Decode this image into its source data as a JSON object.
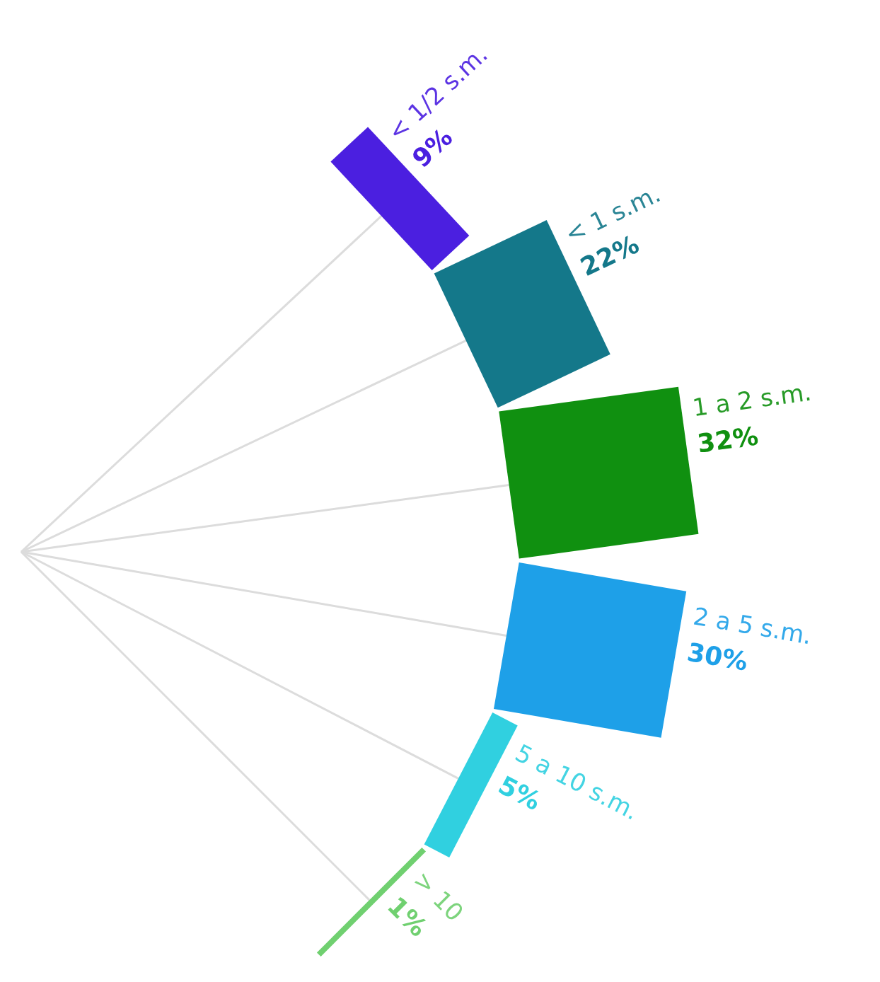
{
  "chart_data": {
    "type": "other",
    "categories": [
      "< 1/2 s.m.",
      "< 1 s.m.",
      "1 a 2 s.m.",
      "2 a 5 s.m.",
      "5 a 10 s.m.",
      "> 10"
    ],
    "values": [
      9,
      22,
      32,
      30,
      5,
      1
    ],
    "value_labels": [
      "9%",
      "22%",
      "32%",
      "30%",
      "5%",
      "1%"
    ],
    "colors": [
      "#4b1fe0",
      "#14788a",
      "#109010",
      "#1ea0e8",
      "#30d0e0",
      "#70d070"
    ]
  }
}
